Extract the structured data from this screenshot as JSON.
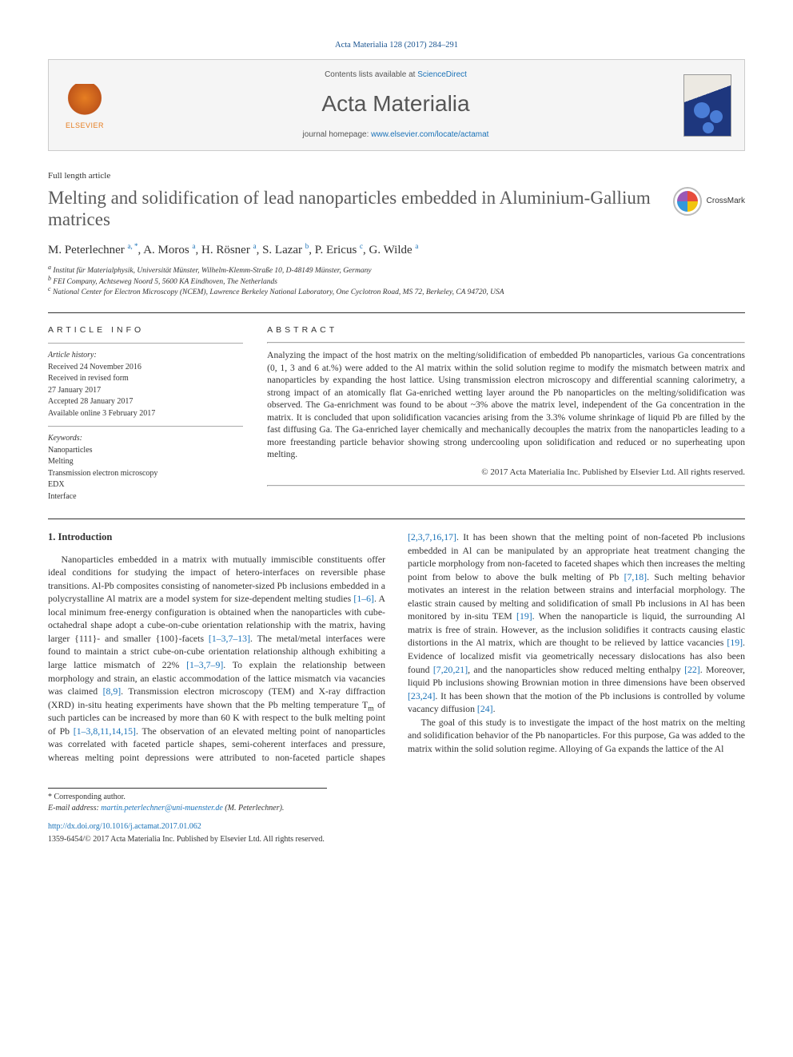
{
  "citation": "Acta Materialia 128 (2017) 284–291",
  "header": {
    "contents_prefix": "Contents lists available at ",
    "contents_link": "ScienceDirect",
    "journal": "Acta Materialia",
    "homepage_prefix": "journal homepage: ",
    "homepage_url": "www.elsevier.com/locate/actamat",
    "publisher": "ELSEVIER"
  },
  "article_type": "Full length article",
  "title": "Melting and solidification of lead nanoparticles embedded in Aluminium-Gallium matrices",
  "crossmark_label": "CrossMark",
  "authors_html": "M. Peterlechner <sup>a, *</sup>, A. Moros <sup>a</sup>, H. Rösner <sup>a</sup>, S. Lazar <sup>b</sup>, P. Ericus <sup>c</sup>, G. Wilde <sup>a</sup>",
  "affiliations": [
    "a Institut für Materialphysik, Universität Münster, Wilhelm-Klemm-Straße 10, D-48149 Münster, Germany",
    "b FEI Company, Achtseweg Noord 5, 5600 KA Eindhoven, The Netherlands",
    "c National Center for Electron Microscopy (NCEM), Lawrence Berkeley National Laboratory, One Cyclotron Road, MS 72, Berkeley, CA 94720, USA"
  ],
  "article_info": {
    "heading": "ARTICLE INFO",
    "history_label": "Article history:",
    "history": [
      "Received 24 November 2016",
      "Received in revised form",
      "27 January 2017",
      "Accepted 28 January 2017",
      "Available online 3 February 2017"
    ],
    "keywords_label": "Keywords:",
    "keywords": [
      "Nanoparticles",
      "Melting",
      "Transmission electron microscopy",
      "EDX",
      "Interface"
    ]
  },
  "abstract": {
    "heading": "ABSTRACT",
    "text": "Analyzing the impact of the host matrix on the melting/solidification of embedded Pb nanoparticles, various Ga concentrations (0, 1, 3 and 6 at.%) were added to the Al matrix within the solid solution regime to modify the mismatch between matrix and nanoparticles by expanding the host lattice. Using transmission electron microscopy and differential scanning calorimetry, a strong impact of an atomically flat Ga-enriched wetting layer around the Pb nanoparticles on the melting/solidification was observed. The Ga-enrichment was found to be about ~3% above the matrix level, independent of the Ga concentration in the matrix. It is concluded that upon solidification vacancies arising from the 3.3% volume shrinkage of liquid Pb are filled by the fast diffusing Ga. The Ga-enriched layer chemically and mechanically decouples the matrix from the nanoparticles leading to a more freestanding particle behavior showing strong undercooling upon solidification and reduced or no superheating upon melting.",
    "copyright": "© 2017 Acta Materialia Inc. Published by Elsevier Ltd. All rights reserved."
  },
  "section1": {
    "heading": "1. Introduction",
    "p1a": "Nanoparticles embedded in a matrix with mutually immiscible constituents offer ideal conditions for studying the impact of hetero-interfaces on reversible phase transitions. Al-Pb composites consisting of nanometer-sized Pb inclusions embedded in a polycrystalline Al matrix are a model system for size-dependent melting studies ",
    "r1": "[1–6]",
    "p1b": ". A local minimum free-energy configuration is obtained when the nanoparticles with cube-octahedral shape adopt a cube-on-cube orientation relationship with the matrix, having larger {111}- and smaller {100}-facets ",
    "r2": "[1–3,7–13]",
    "p1c": ". The metal/metal interfaces were found to maintain a strict cube-on-cube orientation relationship although exhibiting a large lattice mismatch of 22% ",
    "r3": "[1–3,7–9]",
    "p1d": ". To explain the relationship between morphology and strain, an elastic accommodation of the lattice mismatch via vacancies was claimed ",
    "r4": "[8,9]",
    "p1e": ". Transmission electron microscopy (TEM) and X-ray diffraction (XRD) in-situ heating experiments have shown that the Pb melting temperature T",
    "p1e_sub": "m",
    "p1f": " of such particles can be increased by more than 60 K with respect to the bulk melting point of Pb ",
    "r5": "[1–3,8,11,14,15]",
    "p1g": ". The observation of an elevated melting point of nanoparticles was ",
    "p2a": "correlated with faceted particle shapes, semi-coherent interfaces and pressure, whereas melting point depressions were attributed to non-faceted particle shapes ",
    "r6": "[2,3,7,16,17]",
    "p2b": ". It has been shown that the melting point of non-faceted Pb inclusions embedded in Al can be manipulated by an appropriate heat treatment changing the particle morphology from non-faceted to faceted shapes which then increases the melting point from below to above the bulk melting of Pb ",
    "r7": "[7,18]",
    "p2c": ". Such melting behavior motivates an interest in the relation between strains and interfacial morphology. The elastic strain caused by melting and solidification of small Pb inclusions in Al has been monitored by in-situ TEM ",
    "r8": "[19]",
    "p2d": ". When the nanoparticle is liquid, the surrounding Al matrix is free of strain. However, as the inclusion solidifies it contracts causing elastic distortions in the Al matrix, which are thought to be relieved by lattice vacancies ",
    "r9": "[19]",
    "p2e": ". Evidence of localized misfit via geometrically necessary dislocations has also been found ",
    "r10": "[7,20,21]",
    "p2f": ", and the nanoparticles show reduced melting enthalpy ",
    "r11": "[22]",
    "p2g": ". Moreover, liquid Pb inclusions showing Brownian motion in three dimensions have been observed ",
    "r12": "[23,24]",
    "p2h": ". It has been shown that the motion of the Pb inclusions is controlled by volume vacancy diffusion ",
    "r13": "[24]",
    "p2i": ".",
    "p3": "The goal of this study is to investigate the impact of the host matrix on the melting and solidification behavior of the Pb nanoparticles. For this purpose, Ga was added to the matrix within the solid solution regime. Alloying of Ga expands the lattice of the Al"
  },
  "footer": {
    "corresponding": "* Corresponding author.",
    "email_label": "E-mail address: ",
    "email": "martin.peterlechner@uni-muenster.de",
    "email_suffix": " (M. Peterlechner).",
    "doi": "http://dx.doi.org/10.1016/j.actamat.2017.01.062",
    "copyright_line": "1359-6454/© 2017 Acta Materialia Inc. Published by Elsevier Ltd. All rights reserved."
  },
  "colors": {
    "link": "#1a72b8",
    "text": "#333333",
    "title_gray": "#5a5a5a",
    "header_bg": "#f5f5f5",
    "rule": "#333333"
  }
}
